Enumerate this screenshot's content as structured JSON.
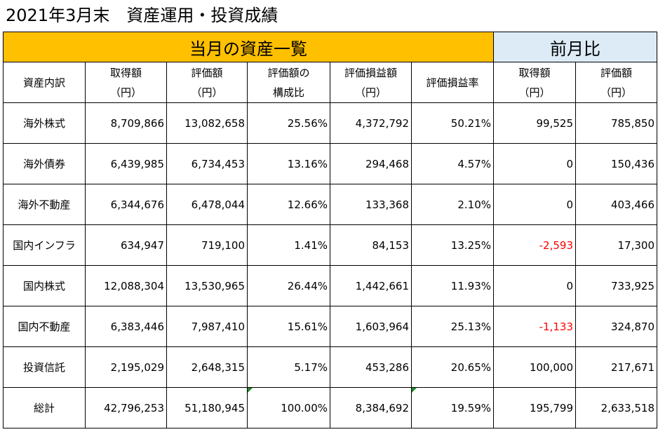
{
  "title": "2021年3月末　資産運用・投資成績",
  "bands": {
    "main": "当月の資産一覧",
    "prev": "前月比"
  },
  "headers": [
    {
      "l1": "資産内訳",
      "l2": ""
    },
    {
      "l1": "取得額",
      "l2": "（円）"
    },
    {
      "l1": "評価額",
      "l2": "（円）"
    },
    {
      "l1": "評価額の",
      "l2": "構成比"
    },
    {
      "l1": "評価損益額",
      "l2": "（円）"
    },
    {
      "l1": "評価損益率",
      "l2": ""
    },
    {
      "l1": "取得額",
      "l2": "（円）"
    },
    {
      "l1": "評価額",
      "l2": "（円）"
    }
  ],
  "rows": [
    {
      "name": "海外株式",
      "cost": "8,709,866",
      "value": "13,082,658",
      "ratio": "25.56%",
      "pl": "4,372,792",
      "plrate": "50.21%",
      "dcost": "99,525",
      "dvalue": "785,850"
    },
    {
      "name": "海外債券",
      "cost": "6,439,985",
      "value": "6,734,453",
      "ratio": "13.16%",
      "pl": "294,468",
      "plrate": "4.57%",
      "dcost": "0",
      "dvalue": "150,436"
    },
    {
      "name": "海外不動産",
      "cost": "6,344,676",
      "value": "6,478,044",
      "ratio": "12.66%",
      "pl": "133,368",
      "plrate": "2.10%",
      "dcost": "0",
      "dvalue": "403,466"
    },
    {
      "name": "国内インフラ",
      "cost": "634,947",
      "value": "719,100",
      "ratio": "1.41%",
      "pl": "84,153",
      "plrate": "13.25%",
      "dcost": "-2,593",
      "dvalue": "17,300"
    },
    {
      "name": "国内株式",
      "cost": "12,088,304",
      "value": "13,530,965",
      "ratio": "26.44%",
      "pl": "1,442,661",
      "plrate": "11.93%",
      "dcost": "0",
      "dvalue": "733,925"
    },
    {
      "name": "国内不動産",
      "cost": "6,383,446",
      "value": "7,987,410",
      "ratio": "15.61%",
      "pl": "1,603,964",
      "plrate": "25.13%",
      "dcost": "-1,133",
      "dvalue": "324,870"
    },
    {
      "name": "投資信託",
      "cost": "2,195,029",
      "value": "2,648,315",
      "ratio": "5.17%",
      "pl": "453,286",
      "plrate": "20.65%",
      "dcost": "100,000",
      "dvalue": "217,671"
    },
    {
      "name": "総計",
      "cost": "42,796,253",
      "value": "51,180,945",
      "ratio": "100.00%",
      "pl": "8,384,692",
      "plrate": "19.59%",
      "dcost": "195,799",
      "dvalue": "2,633,518"
    }
  ],
  "colors": {
    "main_band": "#ffc000",
    "prev_band": "#ddebf7",
    "negative": "#ff0000",
    "error_flag": "#1e8a2e"
  }
}
